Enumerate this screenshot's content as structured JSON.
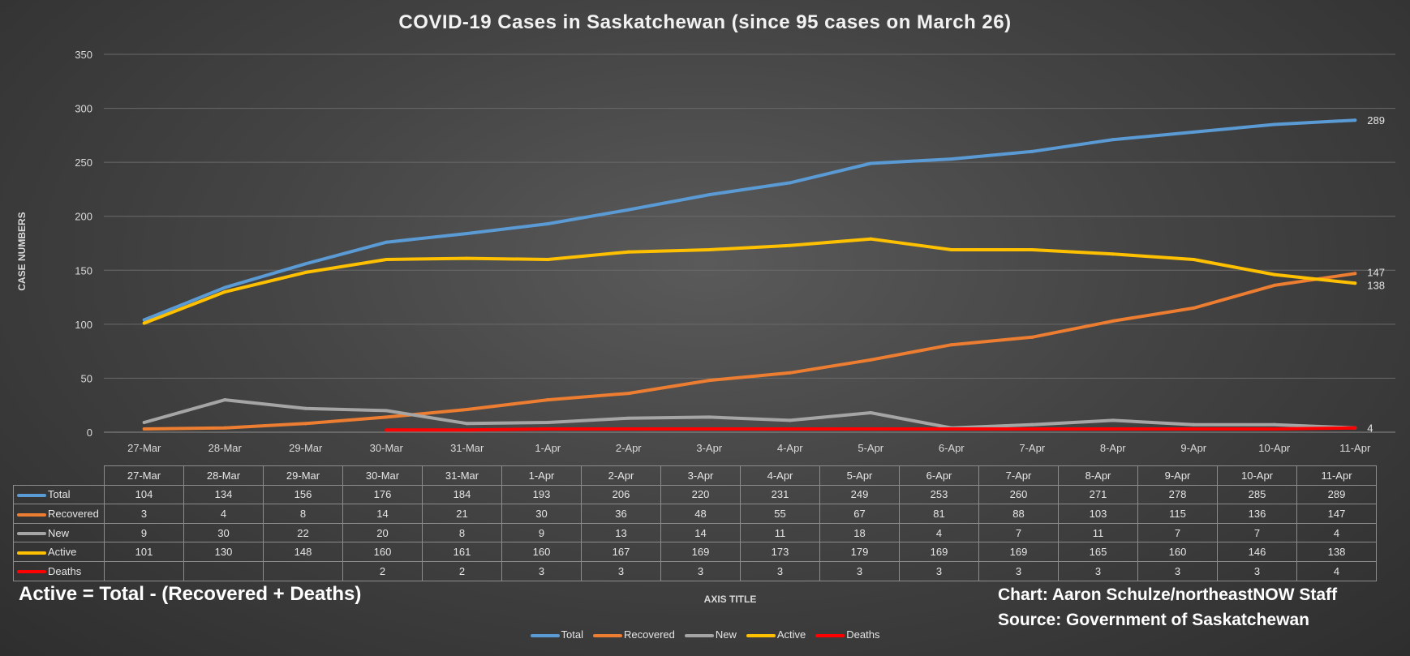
{
  "chart_data": {
    "type": "line",
    "title": "COVID-19 Cases in Saskatchewan (since 95 cases on March 26)",
    "ylabel": "CASE NUMBERS",
    "xlabel": "AXIS TITLE",
    "ylim": [
      0,
      350
    ],
    "yticks": [
      0,
      50,
      100,
      150,
      200,
      250,
      300,
      350
    ],
    "grid": true,
    "legend_position": "bottom",
    "categories": [
      "27-Mar",
      "28-Mar",
      "29-Mar",
      "30-Mar",
      "31-Mar",
      "1-Apr",
      "2-Apr",
      "3-Apr",
      "4-Apr",
      "5-Apr",
      "6-Apr",
      "7-Apr",
      "8-Apr",
      "9-Apr",
      "10-Apr",
      "11-Apr"
    ],
    "series": [
      {
        "name": "Total",
        "color": "#5b9bd5",
        "values": [
          104,
          134,
          156,
          176,
          184,
          193,
          206,
          220,
          231,
          249,
          253,
          260,
          271,
          278,
          285,
          289
        ],
        "end_label": "289"
      },
      {
        "name": "Recovered",
        "color": "#ed7d31",
        "values": [
          3,
          4,
          8,
          14,
          21,
          30,
          36,
          48,
          55,
          67,
          81,
          88,
          103,
          115,
          136,
          147
        ],
        "end_label": "147"
      },
      {
        "name": "New",
        "color": "#a5a5a5",
        "values": [
          9,
          30,
          22,
          20,
          8,
          9,
          13,
          14,
          11,
          18,
          4,
          7,
          11,
          7,
          7,
          4
        ],
        "end_label": ""
      },
      {
        "name": "Active",
        "color": "#ffc000",
        "values": [
          101,
          130,
          148,
          160,
          161,
          160,
          167,
          169,
          173,
          179,
          169,
          169,
          165,
          160,
          146,
          138
        ],
        "end_label": "138"
      },
      {
        "name": "Deaths",
        "color": "#ff0000",
        "values": [
          null,
          null,
          null,
          2,
          2,
          3,
          3,
          3,
          3,
          3,
          3,
          3,
          3,
          3,
          3,
          4
        ],
        "end_label": "4"
      }
    ]
  },
  "notes": {
    "formula": "Active = Total - (Recovered + Deaths)",
    "credit": "Chart: Aaron Schulze/northeastNOW Staff",
    "source": "Source: Government of Saskatchewan"
  }
}
